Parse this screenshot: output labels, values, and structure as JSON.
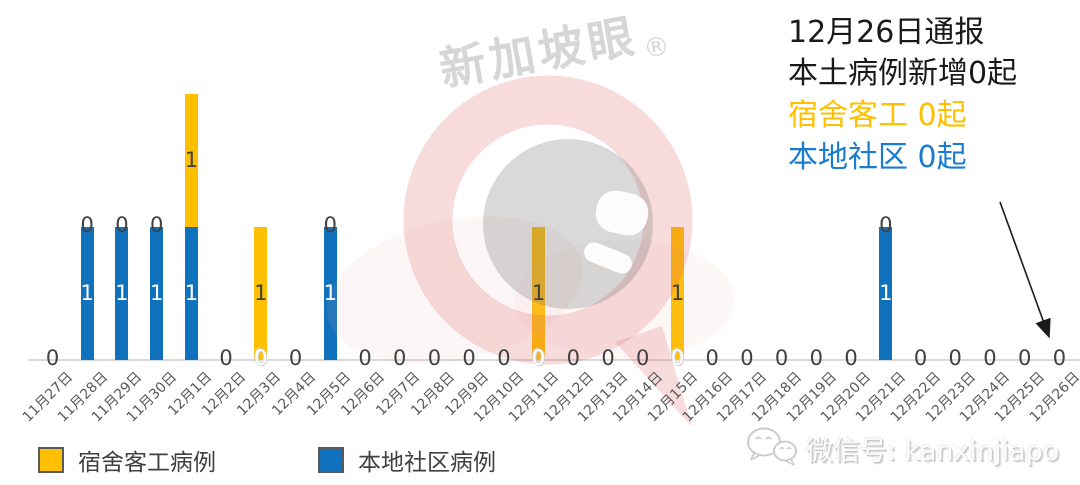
{
  "annotation": {
    "line1": "12月26日通报",
    "line2": "本土病例新增0起",
    "line3": "宿舍客工 0起",
    "line4": "本地社区 0起"
  },
  "watermark": {
    "brand": "新加坡眼",
    "registered": "®"
  },
  "legend": {
    "dorm_label": "宿舍客工病例",
    "community_label": "本地社区病例"
  },
  "footer": {
    "wechat_label": "微信号: kanxinjiapo"
  },
  "colors": {
    "dorm": "#FFC000",
    "community": "#1072BC",
    "annotation_dorm": "#FFC000",
    "annotation_community": "#1B7CCE",
    "axis": "#D9D9D9",
    "value_label_dark": "#404040",
    "date_label": "#595959"
  },
  "chart_data": {
    "type": "bar",
    "stacked": true,
    "title": "",
    "xlabel": "",
    "ylabel": "",
    "ylim": [
      0,
      2
    ],
    "grid": false,
    "legend_position": "bottom-left",
    "x_tick_rotation": 45,
    "stack_bottom_series": "本地社区病例",
    "categories": [
      "11月27日",
      "11月28日",
      "11月29日",
      "11月30日",
      "12月1日",
      "12月2日",
      "12月3日",
      "12月4日",
      "12月5日",
      "12月6日",
      "12月7日",
      "12月8日",
      "12月9日",
      "12月10日",
      "12月11日",
      "12月12日",
      "12月13日",
      "12月14日",
      "12月15日",
      "12月16日",
      "12月17日",
      "12月18日",
      "12月19日",
      "12月20日",
      "12月21日",
      "12月22日",
      "12月23日",
      "12月24日",
      "12月25日",
      "12月26日"
    ],
    "series": [
      {
        "name": "宿舍客工病例",
        "color": "#FFC000",
        "values": [
          0,
          0,
          0,
          0,
          1,
          0,
          1,
          0,
          0,
          0,
          0,
          0,
          0,
          0,
          1,
          0,
          0,
          0,
          1,
          0,
          0,
          0,
          0,
          0,
          0,
          0,
          0,
          0,
          0,
          0
        ]
      },
      {
        "name": "本地社区病例",
        "color": "#1072BC",
        "values": [
          0,
          1,
          1,
          1,
          1,
          0,
          0,
          0,
          1,
          0,
          0,
          0,
          0,
          0,
          0,
          0,
          0,
          0,
          0,
          0,
          0,
          0,
          0,
          0,
          1,
          0,
          0,
          0,
          0,
          0
        ]
      }
    ]
  }
}
